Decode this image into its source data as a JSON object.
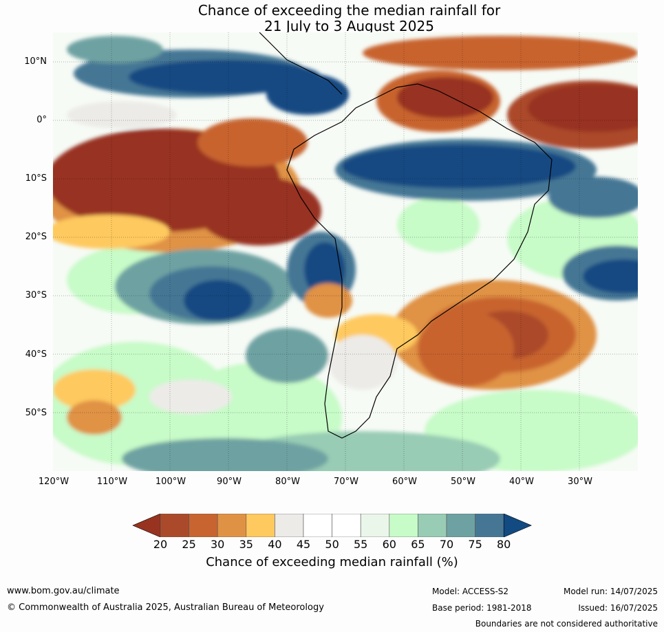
{
  "title_line1": "Chance of exceeding the median rainfall for",
  "title_line2": "21 July to 3 August 2025",
  "lat_labels": [
    "10°N",
    "0°",
    "10°S",
    "20°S",
    "30°S",
    "40°S",
    "50°S"
  ],
  "lon_labels": [
    "120°W",
    "110°W",
    "100°W",
    "90°W",
    "80°W",
    "70°W",
    "60°W",
    "50°W",
    "40°W",
    "30°W"
  ],
  "colorbar": {
    "ticks": [
      "20",
      "25",
      "30",
      "35",
      "40",
      "45",
      "50",
      "55",
      "60",
      "65",
      "70",
      "75",
      "80"
    ],
    "colors": [
      "#983320",
      "#ab4a2a",
      "#c8642f",
      "#e09244",
      "#fec95f",
      "#ecebe8",
      "#ffffff",
      "#ffffff",
      "#eaf6ea",
      "#c7fbc8",
      "#98ccb4",
      "#6ea2a2",
      "#457795",
      "#124a82"
    ],
    "title": "Chance of exceeding median rainfall (%)"
  },
  "footer": {
    "website": "www.bom.gov.au/climate",
    "copyright": "© Commonwealth of Australia 2025, Australian Bureau of Meteorology",
    "model": "Model: ACCESS-S2",
    "base_period": "Base period: 1981-2018",
    "model_run": "Model run: 14/07/2025",
    "issued": "Issued: 16/07/2025",
    "disclaimer": "Boundaries are not considered authoritative"
  },
  "map_grid": {
    "lon_range": [
      -120,
      -20
    ],
    "lat_range": [
      -60,
      15
    ],
    "grid_step": 10
  }
}
